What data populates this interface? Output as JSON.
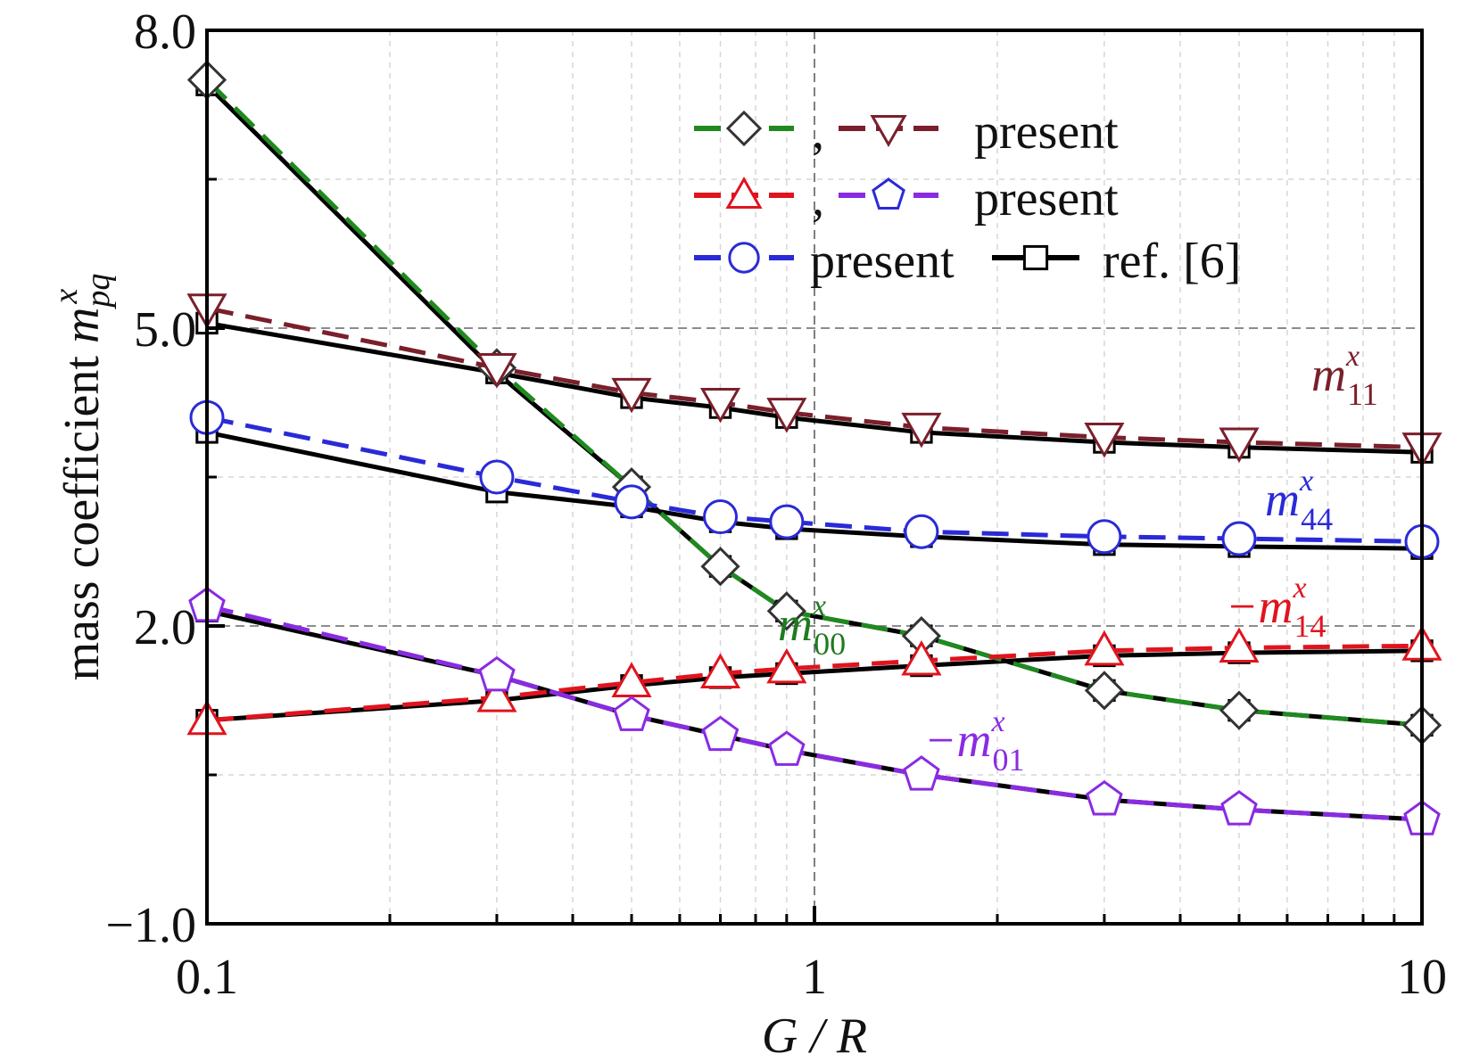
{
  "chart_data": {
    "type": "line",
    "xscale": "log",
    "xlim": [
      0.1,
      10
    ],
    "ylim": [
      -1.0,
      8.0
    ],
    "xticks": [
      {
        "value": 0.1,
        "label": "0.1"
      },
      {
        "value": 1,
        "label": "1"
      },
      {
        "value": 10,
        "label": "10"
      }
    ],
    "yticks": [
      {
        "value": -1.0,
        "label": "−1.0"
      },
      {
        "value": 2.0,
        "label": "2.0"
      },
      {
        "value": 5.0,
        "label": "5.0"
      },
      {
        "value": 8.0,
        "label": "8.0"
      }
    ],
    "xlabel": {
      "main": "G / R"
    },
    "ylabel": {
      "main": "mass coefficient ",
      "var": "m",
      "sub": "pq",
      "sup": "x"
    },
    "grid": true,
    "legend_position": "top-right",
    "legend": {
      "rows": [
        {
          "label": "present"
        },
        {
          "label": "present"
        },
        {
          "label": "present"
        },
        {
          "label": "ref. [6]"
        }
      ],
      "comma": ","
    },
    "annotations": [
      {
        "id": "m11",
        "sign": "",
        "var": "m",
        "sup": "x",
        "sub": "11",
        "color": "#7a1f2b"
      },
      {
        "id": "m44",
        "sign": "",
        "var": "m",
        "sup": "x",
        "sub": "44",
        "color": "#2a2ad8"
      },
      {
        "id": "m00",
        "sign": "",
        "var": "m",
        "sup": "x",
        "sub": "00",
        "color": "#1f7a1f"
      },
      {
        "id": "m14",
        "sign": "−",
        "var": "m",
        "sup": "x",
        "sub": "14",
        "color": "#e0141e"
      },
      {
        "id": "m01",
        "sign": "−",
        "var": "m",
        "sup": "x",
        "sub": "01",
        "color": "#8a2be2"
      }
    ],
    "x": [
      0.1,
      0.3,
      0.5,
      0.7,
      0.9,
      1.5,
      3,
      5,
      10
    ],
    "series": [
      {
        "key": "m00",
        "marker": "diamond",
        "color": "#1f8a1f",
        "dash": true,
        "values": [
          7.5,
          4.6,
          3.4,
          2.6,
          2.15,
          1.9,
          1.35,
          1.15,
          1.0
        ]
      },
      {
        "key": "m11",
        "marker": "triangle-down",
        "color": "#7a1f2b",
        "dash": true,
        "values": [
          5.2,
          4.6,
          4.35,
          4.25,
          4.15,
          4.0,
          3.9,
          3.85,
          3.8
        ]
      },
      {
        "key": "m14",
        "marker": "triangle-up",
        "color": "#e0141e",
        "dash": true,
        "values": [
          1.05,
          1.28,
          1.43,
          1.52,
          1.57,
          1.65,
          1.75,
          1.78,
          1.8
        ]
      },
      {
        "key": "m01",
        "marker": "pentagon",
        "color": "#8a2be2",
        "dash": true,
        "values": [
          2.2,
          1.5,
          1.1,
          0.9,
          0.75,
          0.5,
          0.25,
          0.15,
          0.05
        ]
      },
      {
        "key": "m44",
        "marker": "circle",
        "color": "#2a2ad8",
        "dash": true,
        "values": [
          4.1,
          3.5,
          3.25,
          3.1,
          3.05,
          2.95,
          2.9,
          2.88,
          2.85
        ]
      },
      {
        "key": "ref",
        "marker": "square",
        "color": "#000000",
        "dash": false,
        "values": [
          7.45,
          4.55,
          3.4,
          2.6,
          2.15,
          1.9,
          1.35,
          1.15,
          1.0
        ],
        "extra": [
          [
            5.05,
            4.55,
            4.3,
            4.2,
            4.1,
            3.95,
            3.85,
            3.8,
            3.75
          ],
          [
            1.05,
            1.25,
            1.4,
            1.48,
            1.52,
            1.6,
            1.7,
            1.73,
            1.75
          ],
          [
            2.15,
            1.5,
            1.1,
            0.9,
            0.75,
            0.5,
            0.25,
            0.15,
            0.05
          ],
          [
            3.95,
            3.35,
            3.2,
            3.05,
            2.98,
            2.9,
            2.82,
            2.8,
            2.78
          ]
        ]
      }
    ]
  }
}
